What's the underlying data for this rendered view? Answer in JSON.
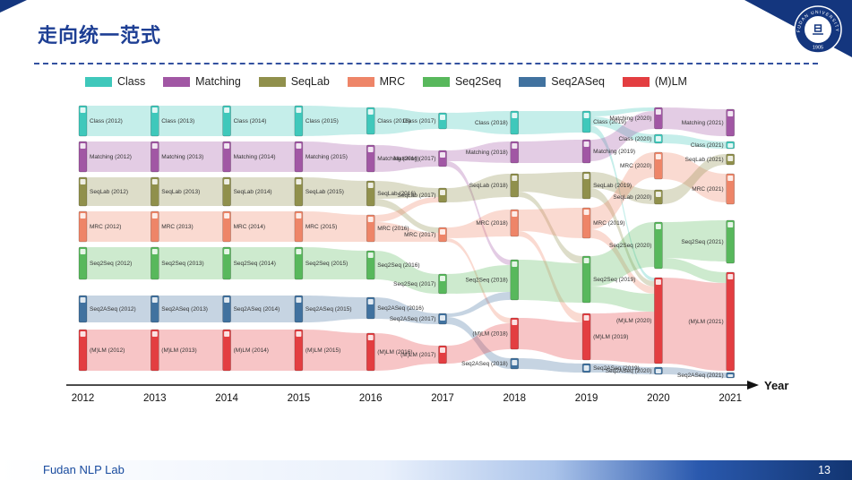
{
  "slide": {
    "title": "走向统一范式",
    "footer_text": "Fudan NLP Lab",
    "page_number": "13",
    "logo": {
      "ring_text": "FUDAN UNIVERSITY",
      "year": "1905",
      "center_glyph": "旦"
    }
  },
  "chart_data": {
    "type": "sankey",
    "x_axis_label": "Year",
    "years": [
      2012,
      2013,
      2014,
      2015,
      2016,
      2017,
      2018,
      2019,
      2020,
      2021
    ],
    "label_format": "{paradigm} ({year})",
    "label_side_by_year": [
      "right",
      "right",
      "right",
      "right",
      "right",
      "left",
      "left",
      "right",
      "left",
      "left"
    ],
    "link_opacity": 0.3,
    "paradigms": [
      {
        "name": "Class",
        "color": "#3fc8bb"
      },
      {
        "name": "Matching",
        "color": "#a157a4"
      },
      {
        "name": "SeqLab",
        "color": "#90904c"
      },
      {
        "name": "MRC",
        "color": "#ee8568"
      },
      {
        "name": "Seq2Seq",
        "color": "#58b85c"
      },
      {
        "name": "Seq2ASeq",
        "color": "#41729f"
      },
      {
        "name": "(M)LM",
        "color": "#e33e41"
      }
    ],
    "nodes": [
      [
        "Class",
        2012,
        0,
        34
      ],
      [
        "Matching",
        2012,
        40,
        34
      ],
      [
        "SeqLab",
        2012,
        80,
        32
      ],
      [
        "MRC",
        2012,
        118,
        34
      ],
      [
        "Seq2Seq",
        2012,
        158,
        36
      ],
      [
        "Seq2ASeq",
        2012,
        212,
        30
      ],
      [
        "(M)LM",
        2012,
        250,
        46
      ],
      [
        "Class",
        2013,
        0,
        34
      ],
      [
        "Matching",
        2013,
        40,
        34
      ],
      [
        "SeqLab",
        2013,
        80,
        32
      ],
      [
        "MRC",
        2013,
        118,
        34
      ],
      [
        "Seq2Seq",
        2013,
        158,
        36
      ],
      [
        "Seq2ASeq",
        2013,
        212,
        30
      ],
      [
        "(M)LM",
        2013,
        250,
        46
      ],
      [
        "Class",
        2014,
        0,
        34
      ],
      [
        "Matching",
        2014,
        40,
        34
      ],
      [
        "SeqLab",
        2014,
        80,
        32
      ],
      [
        "MRC",
        2014,
        118,
        34
      ],
      [
        "Seq2Seq",
        2014,
        158,
        36
      ],
      [
        "Seq2ASeq",
        2014,
        212,
        30
      ],
      [
        "(M)LM",
        2014,
        250,
        46
      ],
      [
        "Class",
        2015,
        0,
        34
      ],
      [
        "Matching",
        2015,
        40,
        34
      ],
      [
        "SeqLab",
        2015,
        80,
        32
      ],
      [
        "MRC",
        2015,
        118,
        34
      ],
      [
        "Seq2Seq",
        2015,
        158,
        36
      ],
      [
        "Seq2ASeq",
        2015,
        212,
        30
      ],
      [
        "(M)LM",
        2015,
        250,
        46
      ],
      [
        "Class",
        2016,
        2,
        30
      ],
      [
        "Matching",
        2016,
        44,
        30
      ],
      [
        "SeqLab",
        2016,
        84,
        28
      ],
      [
        "MRC",
        2016,
        122,
        30
      ],
      [
        "Seq2Seq",
        2016,
        162,
        32
      ],
      [
        "Seq2ASeq",
        2016,
        214,
        24
      ],
      [
        "(M)LM",
        2016,
        254,
        42
      ],
      [
        "Class",
        2017,
        8,
        18
      ],
      [
        "Matching",
        2017,
        50,
        18
      ],
      [
        "SeqLab",
        2017,
        92,
        16
      ],
      [
        "MRC",
        2017,
        136,
        16
      ],
      [
        "Seq2Seq",
        2017,
        188,
        22
      ],
      [
        "Seq2ASeq",
        2017,
        232,
        12
      ],
      [
        "(M)LM",
        2017,
        268,
        20
      ],
      [
        "Class",
        2018,
        6,
        26
      ],
      [
        "Matching",
        2018,
        40,
        24
      ],
      [
        "SeqLab",
        2018,
        76,
        26
      ],
      [
        "MRC",
        2018,
        116,
        30
      ],
      [
        "Seq2Seq",
        2018,
        172,
        45
      ],
      [
        "(M)LM",
        2018,
        237,
        35
      ],
      [
        "Seq2ASeq",
        2018,
        282,
        12
      ],
      [
        "Class",
        2019,
        6,
        24
      ],
      [
        "Matching",
        2019,
        38,
        26
      ],
      [
        "SeqLab",
        2019,
        74,
        30
      ],
      [
        "MRC",
        2019,
        114,
        34
      ],
      [
        "Seq2Seq",
        2019,
        168,
        52
      ],
      [
        "(M)LM",
        2019,
        232,
        52
      ],
      [
        "Seq2ASeq",
        2019,
        288,
        10
      ],
      [
        "Matching",
        2020,
        2,
        24
      ],
      [
        "Class",
        2020,
        32,
        10
      ],
      [
        "MRC",
        2020,
        52,
        30
      ],
      [
        "SeqLab",
        2020,
        94,
        16
      ],
      [
        "Seq2Seq",
        2020,
        130,
        52
      ],
      [
        "(M)LM",
        2020,
        192,
        96
      ],
      [
        "Seq2ASeq",
        2020,
        292,
        8
      ],
      [
        "Matching",
        2021,
        4,
        30
      ],
      [
        "Class",
        2021,
        40,
        8
      ],
      [
        "SeqLab",
        2021,
        54,
        12
      ],
      [
        "MRC",
        2021,
        76,
        34
      ],
      [
        "Seq2Seq",
        2021,
        128,
        48
      ],
      [
        "(M)LM",
        2021,
        186,
        110
      ],
      [
        "Seq2ASeq",
        2021,
        298,
        6
      ]
    ],
    "links": [
      [
        "Class",
        2012,
        "Class",
        34,
        34
      ],
      [
        "Matching",
        2012,
        "Matching",
        34,
        34
      ],
      [
        "SeqLab",
        2012,
        "SeqLab",
        32,
        32
      ],
      [
        "MRC",
        2012,
        "MRC",
        34,
        34
      ],
      [
        "Seq2Seq",
        2012,
        "Seq2Seq",
        36,
        36
      ],
      [
        "Seq2ASeq",
        2012,
        "Seq2ASeq",
        30,
        30
      ],
      [
        "(M)LM",
        2012,
        "(M)LM",
        46,
        46
      ],
      [
        "Class",
        2013,
        "Class",
        34,
        34
      ],
      [
        "Matching",
        2013,
        "Matching",
        34,
        34
      ],
      [
        "SeqLab",
        2013,
        "SeqLab",
        32,
        32
      ],
      [
        "MRC",
        2013,
        "MRC",
        34,
        34
      ],
      [
        "Seq2Seq",
        2013,
        "Seq2Seq",
        36,
        36
      ],
      [
        "Seq2ASeq",
        2013,
        "Seq2ASeq",
        30,
        30
      ],
      [
        "(M)LM",
        2013,
        "(M)LM",
        46,
        46
      ],
      [
        "Class",
        2014,
        "Class",
        34,
        34
      ],
      [
        "Matching",
        2014,
        "Matching",
        34,
        34
      ],
      [
        "SeqLab",
        2014,
        "SeqLab",
        32,
        32
      ],
      [
        "MRC",
        2014,
        "MRC",
        34,
        34
      ],
      [
        "Seq2Seq",
        2014,
        "Seq2Seq",
        36,
        36
      ],
      [
        "Seq2ASeq",
        2014,
        "Seq2ASeq",
        30,
        30
      ],
      [
        "(M)LM",
        2014,
        "(M)LM",
        46,
        46
      ],
      [
        "Class",
        2015,
        "Class",
        34,
        30
      ],
      [
        "Matching",
        2015,
        "Matching",
        34,
        30
      ],
      [
        "SeqLab",
        2015,
        "SeqLab",
        32,
        28
      ],
      [
        "MRC",
        2015,
        "MRC",
        34,
        30
      ],
      [
        "Seq2Seq",
        2015,
        "Seq2Seq",
        36,
        32
      ],
      [
        "Seq2ASeq",
        2015,
        "Seq2ASeq",
        30,
        24
      ],
      [
        "(M)LM",
        2015,
        "(M)LM",
        46,
        42
      ],
      [
        "Class",
        2016,
        "Class",
        30,
        18
      ],
      [
        "Matching",
        2016,
        "Matching",
        30,
        18
      ],
      [
        "SeqLab",
        2016,
        "SeqLab",
        20,
        10
      ],
      [
        "SeqLab",
        2016,
        "MRC",
        8,
        6
      ],
      [
        "MRC",
        2016,
        "MRC",
        22,
        10
      ],
      [
        "MRC",
        2016,
        "SeqLab",
        8,
        6
      ],
      [
        "Seq2Seq",
        2016,
        "Seq2Seq",
        32,
        22
      ],
      [
        "Seq2ASeq",
        2016,
        "Seq2ASeq",
        24,
        12
      ],
      [
        "(M)LM",
        2016,
        "(M)LM",
        42,
        20
      ],
      [
        "Class",
        2017,
        "Class",
        18,
        26
      ],
      [
        "Matching",
        2017,
        "Matching",
        12,
        24
      ],
      [
        "Matching",
        2017,
        "Seq2Seq",
        6,
        6
      ],
      [
        "SeqLab",
        2017,
        "SeqLab",
        16,
        26
      ],
      [
        "MRC",
        2017,
        "MRC",
        12,
        30
      ],
      [
        "MRC",
        2017,
        "(M)LM",
        4,
        6
      ],
      [
        "Seq2Seq",
        2017,
        "Seq2Seq",
        22,
        30
      ],
      [
        "Seq2ASeq",
        2017,
        "Seq2Seq",
        4,
        9
      ],
      [
        "Seq2ASeq",
        2017,
        "Seq2ASeq",
        8,
        12
      ],
      [
        "(M)LM",
        2017,
        "(M)LM",
        20,
        29
      ],
      [
        "Class",
        2018,
        "Class",
        26,
        24
      ],
      [
        "Matching",
        2018,
        "Matching",
        24,
        26
      ],
      [
        "SeqLab",
        2018,
        "SeqLab",
        20,
        30
      ],
      [
        "SeqLab",
        2018,
        "Seq2Seq",
        6,
        8
      ],
      [
        "MRC",
        2018,
        "MRC",
        24,
        34
      ],
      [
        "MRC",
        2018,
        "(M)LM",
        6,
        10
      ],
      [
        "Seq2Seq",
        2018,
        "Seq2Seq",
        45,
        44
      ],
      [
        "(M)LM",
        2018,
        "(M)LM",
        35,
        42
      ],
      [
        "Seq2ASeq",
        2018,
        "Seq2ASeq",
        12,
        10
      ],
      [
        "Class",
        2019,
        "Class",
        10,
        10
      ],
      [
        "Class",
        2019,
        "Matching",
        6,
        4
      ],
      [
        "Class",
        2019,
        "(M)LM",
        8,
        4
      ],
      [
        "Matching",
        2019,
        "Matching",
        24,
        20
      ],
      [
        "SeqLab",
        2019,
        "SeqLab",
        18,
        16
      ],
      [
        "SeqLab",
        2019,
        "(M)LM",
        10,
        6
      ],
      [
        "MRC",
        2019,
        "MRC",
        24,
        28
      ],
      [
        "MRC",
        2019,
        "(M)LM",
        10,
        8
      ],
      [
        "Seq2Seq",
        2019,
        "Seq2Seq",
        34,
        50
      ],
      [
        "Seq2Seq",
        2019,
        "(M)LM",
        18,
        20
      ],
      [
        "(M)LM",
        2019,
        "(M)LM",
        52,
        58
      ],
      [
        "Seq2ASeq",
        2019,
        "Seq2ASeq",
        10,
        8
      ],
      [
        "Matching",
        2020,
        "Matching",
        24,
        30
      ],
      [
        "Class",
        2020,
        "Class",
        10,
        8
      ],
      [
        "MRC",
        2020,
        "MRC",
        30,
        32
      ],
      [
        "SeqLab",
        2020,
        "SeqLab",
        16,
        12
      ],
      [
        "Seq2Seq",
        2020,
        "Seq2Seq",
        40,
        46
      ],
      [
        "Seq2Seq",
        2020,
        "(M)LM",
        12,
        12
      ],
      [
        "(M)LM",
        2020,
        "(M)LM",
        96,
        98
      ],
      [
        "Seq2ASeq",
        2020,
        "Seq2ASeq",
        8,
        6
      ]
    ]
  }
}
